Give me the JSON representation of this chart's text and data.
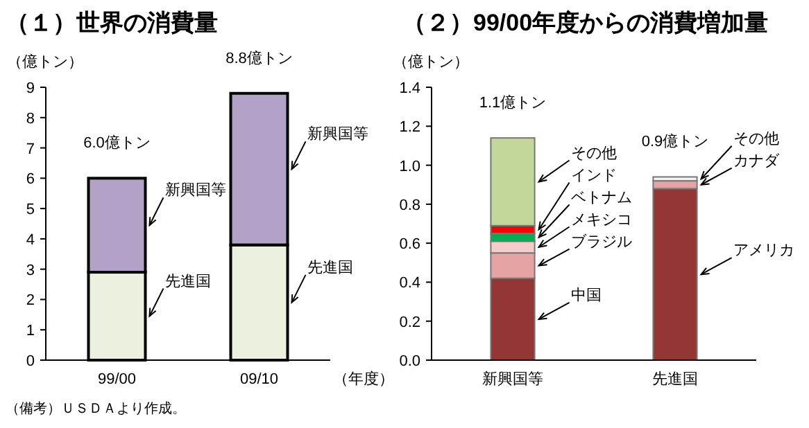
{
  "chart_data": [
    {
      "type": "bar",
      "title": "（１）世界の消費量",
      "ylabel": "（億トン）",
      "xlabel": "（年度）",
      "categories": [
        "99/00",
        "09/10"
      ],
      "stacked": true,
      "ylim": [
        0,
        9
      ],
      "yticks": [
        0,
        1,
        2,
        3,
        4,
        5,
        6,
        7,
        8,
        9
      ],
      "totals": [
        "6.0億トン",
        "8.8億トン"
      ],
      "annotations": [
        "（備考）ＵＳＤＡより作成。"
      ],
      "series": [
        {
          "name": "先進国",
          "color": "#ebf1de",
          "values": [
            2.9,
            3.8
          ]
        },
        {
          "name": "新興国等",
          "color": "#b3a2c7",
          "values": [
            3.1,
            5.0
          ]
        }
      ]
    },
    {
      "type": "bar",
      "title": "（２）99/00年度からの消費増加量",
      "ylabel": "（億トン）",
      "categories": [
        "新興国等",
        "先進国"
      ],
      "stacked": true,
      "ylim": [
        0,
        1.4
      ],
      "yticks": [
        {
          "value": 0,
          "label": "0.0"
        },
        0.2,
        0.4,
        0.6,
        0.8,
        {
          "value": 1,
          "label": "1.0"
        },
        1.2,
        1.4
      ],
      "totals": [
        "1.1億トン",
        "0.9億トン"
      ],
      "series": [
        {
          "name": "中国",
          "color": "#943634",
          "values": [
            0.42,
            null
          ]
        },
        {
          "name": "ブラジル",
          "color": "#e6a3a3",
          "values": [
            0.13,
            null
          ]
        },
        {
          "name": "メキシコ",
          "color": "#f4cccc",
          "values": [
            0.06,
            null
          ]
        },
        {
          "name": "ベトナム",
          "color": "#00b050",
          "values": [
            0.04,
            null
          ]
        },
        {
          "name": "インド",
          "color": "#ff0000",
          "values": [
            0.04,
            null
          ]
        },
        {
          "name": "その他",
          "color": "#c4d79b",
          "values": [
            0.45,
            null
          ]
        },
        {
          "name": "アメリカ",
          "color": "#943634",
          "values": [
            null,
            0.88
          ]
        },
        {
          "name": "カナダ",
          "color": "#e6a3a3",
          "values": [
            null,
            0.04
          ]
        },
        {
          "name": "その他",
          "color": "#f2f2f2",
          "values": [
            null,
            0.02
          ]
        }
      ]
    }
  ]
}
